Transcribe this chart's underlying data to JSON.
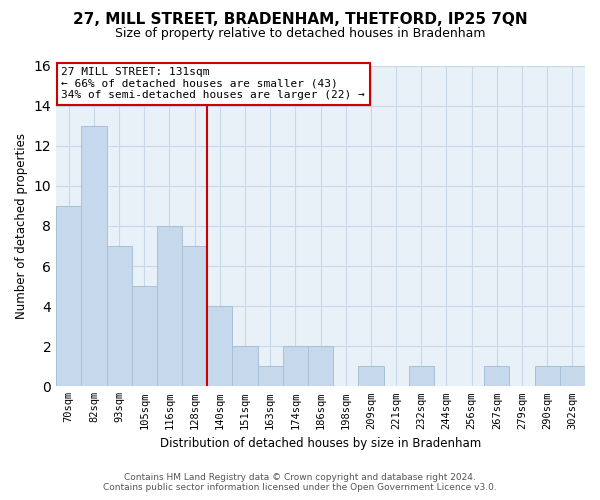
{
  "title": "27, MILL STREET, BRADENHAM, THETFORD, IP25 7QN",
  "subtitle": "Size of property relative to detached houses in Bradenham",
  "xlabel": "Distribution of detached houses by size in Bradenham",
  "ylabel": "Number of detached properties",
  "bar_labels": [
    "70sqm",
    "82sqm",
    "93sqm",
    "105sqm",
    "116sqm",
    "128sqm",
    "140sqm",
    "151sqm",
    "163sqm",
    "174sqm",
    "186sqm",
    "198sqm",
    "209sqm",
    "221sqm",
    "232sqm",
    "244sqm",
    "256sqm",
    "267sqm",
    "279sqm",
    "290sqm",
    "302sqm"
  ],
  "bar_values": [
    9,
    13,
    7,
    5,
    8,
    7,
    4,
    2,
    1,
    2,
    2,
    0,
    1,
    0,
    1,
    0,
    0,
    1,
    0,
    1,
    1
  ],
  "bar_color": "#c6d9ec",
  "bar_edge_color": "#a8c0d8",
  "highlight_line_color": "#cc0000",
  "annotation_line1": "27 MILL STREET: 131sqm",
  "annotation_line2": "← 66% of detached houses are smaller (43)",
  "annotation_line3": "34% of semi-detached houses are larger (22) →",
  "annotation_box_color": "#ffffff",
  "annotation_box_edge_color": "#cc0000",
  "ylim": [
    0,
    16
  ],
  "yticks": [
    0,
    2,
    4,
    6,
    8,
    10,
    12,
    14,
    16
  ],
  "footer_line1": "Contains HM Land Registry data © Crown copyright and database right 2024.",
  "footer_line2": "Contains public sector information licensed under the Open Government Licence v3.0.",
  "grid_color": "#c8d8e8",
  "background_color": "#e8f0f8",
  "title_fontsize": 11,
  "subtitle_fontsize": 9
}
